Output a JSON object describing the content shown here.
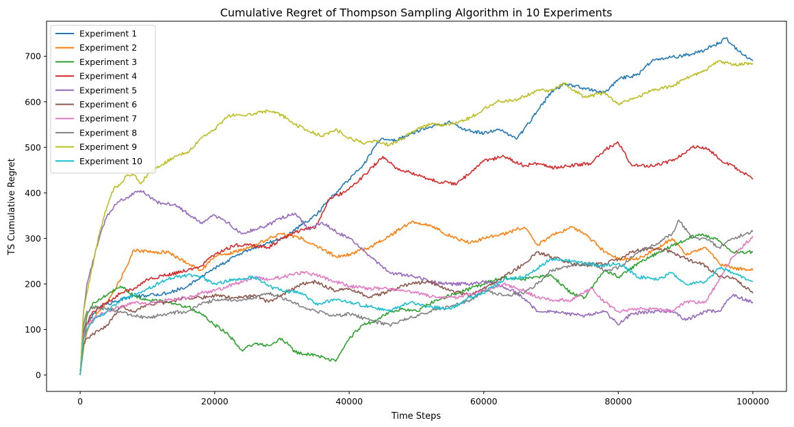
{
  "chart_data": {
    "type": "line",
    "title": "Cumulative Regret of Thompson Sampling Algorithm in 10 Experiments",
    "xlabel": "Time Steps",
    "ylabel": "TS Cumulative Regret",
    "xlim": [
      -5000,
      105000
    ],
    "ylim": [
      -36,
      777
    ],
    "x_ticks": [
      0,
      20000,
      40000,
      60000,
      80000,
      100000
    ],
    "x_tick_labels": [
      "0",
      "20000",
      "40000",
      "60000",
      "80000",
      "100000"
    ],
    "y_ticks": [
      0,
      100,
      200,
      300,
      400,
      500,
      600,
      700
    ],
    "y_tick_labels": [
      "0",
      "100",
      "200",
      "300",
      "400",
      "500",
      "600",
      "700"
    ],
    "grid": false,
    "legend_position": "upper-left",
    "series": [
      {
        "name": "Experiment 1",
        "color": "#1f77b4",
        "x": [
          0,
          500,
          1000,
          2000,
          3000,
          5000,
          7000,
          10000,
          13000,
          16000,
          18000,
          20000,
          23000,
          25000,
          28000,
          30000,
          33000,
          35000,
          37000,
          40000,
          42000,
          44000,
          45000,
          47000,
          50000,
          52000,
          55000,
          57000,
          60000,
          62000,
          65000,
          68000,
          70000,
          72000,
          75000,
          78000,
          80000,
          83000,
          85000,
          87000,
          89000,
          91000,
          93000,
          95000,
          96000,
          98000,
          100000
        ],
        "y": [
          0,
          80,
          110,
          135,
          150,
          160,
          170,
          175,
          180,
          195,
          215,
          235,
          260,
          275,
          290,
          300,
          330,
          350,
          385,
          430,
          460,
          505,
          520,
          515,
          535,
          545,
          555,
          540,
          530,
          540,
          520,
          580,
          620,
          640,
          630,
          620,
          650,
          660,
          690,
          695,
          700,
          705,
          715,
          730,
          740,
          710,
          690
        ]
      },
      {
        "name": "Experiment 2",
        "color": "#ff7f0e",
        "x": [
          0,
          500,
          1000,
          2000,
          4000,
          6000,
          8000,
          10000,
          13000,
          16000,
          18000,
          20000,
          23000,
          26000,
          28000,
          30000,
          33000,
          35000,
          38000,
          40000,
          43000,
          46000,
          49000,
          52000,
          55000,
          58000,
          60000,
          63000,
          66000,
          68000,
          70000,
          73000,
          75000,
          78000,
          80000,
          83000,
          86000,
          88000,
          90000,
          93000,
          95000,
          97000,
          100000
        ],
        "y": [
          0,
          60,
          95,
          125,
          160,
          210,
          275,
          270,
          270,
          245,
          230,
          260,
          270,
          285,
          300,
          310,
          300,
          285,
          260,
          265,
          280,
          305,
          335,
          330,
          305,
          290,
          300,
          310,
          325,
          285,
          305,
          325,
          310,
          270,
          255,
          255,
          280,
          300,
          265,
          280,
          245,
          235,
          230
        ]
      },
      {
        "name": "Experiment 3",
        "color": "#2ca02c",
        "x": [
          0,
          500,
          1000,
          2000,
          4000,
          6000,
          8000,
          10000,
          13000,
          16000,
          18000,
          20000,
          22000,
          24000,
          26000,
          28000,
          30000,
          32000,
          34000,
          36000,
          38000,
          40000,
          42000,
          44000,
          46000,
          48000,
          50000,
          53000,
          56000,
          60000,
          63000,
          66000,
          70000,
          73000,
          75000,
          78000,
          80000,
          83000,
          86000,
          89000,
          92000,
          95000,
          97000,
          100000
        ],
        "y": [
          0,
          90,
          130,
          160,
          175,
          195,
          175,
          165,
          160,
          150,
          135,
          110,
          90,
          55,
          70,
          65,
          80,
          50,
          45,
          40,
          30,
          80,
          110,
          120,
          140,
          145,
          140,
          165,
          180,
          200,
          215,
          210,
          220,
          180,
          170,
          230,
          215,
          245,
          270,
          290,
          310,
          295,
          270,
          270
        ]
      },
      {
        "name": "Experiment 4",
        "color": "#d62728",
        "x": [
          0,
          500,
          1000,
          2000,
          4000,
          6000,
          8000,
          10000,
          13000,
          16000,
          18000,
          20000,
          23000,
          25000,
          28000,
          30000,
          33000,
          35000,
          37000,
          39000,
          41000,
          43000,
          45000,
          47000,
          50000,
          53000,
          56000,
          60000,
          63000,
          66000,
          68000,
          70000,
          73000,
          76000,
          78000,
          80000,
          82000,
          85000,
          88000,
          91000,
          93000,
          95000,
          98000,
          100000
        ],
        "y": [
          0,
          90,
          115,
          140,
          160,
          180,
          190,
          210,
          220,
          230,
          240,
          265,
          285,
          285,
          280,
          300,
          320,
          325,
          385,
          400,
          420,
          450,
          480,
          455,
          440,
          425,
          420,
          470,
          480,
          460,
          465,
          455,
          460,
          465,
          495,
          510,
          460,
          460,
          470,
          500,
          500,
          475,
          450,
          430
        ]
      },
      {
        "name": "Experiment 5",
        "color": "#9467bd",
        "x": [
          0,
          500,
          1000,
          2000,
          3000,
          4000,
          5000,
          6000,
          7000,
          8000,
          9000,
          10000,
          12000,
          14000,
          16000,
          18000,
          20000,
          22000,
          24000,
          26000,
          28000,
          30000,
          32000,
          34000,
          36000,
          38000,
          40000,
          42000,
          44000,
          46000,
          48000,
          50000,
          52000,
          55000,
          58000,
          60000,
          62000,
          65000,
          68000,
          70000,
          72000,
          75000,
          78000,
          80000,
          82000,
          85000,
          88000,
          90000,
          93000,
          95000,
          97000,
          100000
        ],
        "y": [
          0,
          140,
          200,
          255,
          310,
          350,
          370,
          385,
          390,
          400,
          405,
          395,
          375,
          375,
          355,
          335,
          350,
          335,
          310,
          320,
          330,
          345,
          355,
          320,
          335,
          315,
          300,
          275,
          250,
          225,
          220,
          215,
          205,
          200,
          200,
          205,
          200,
          180,
          140,
          140,
          135,
          130,
          140,
          110,
          135,
          140,
          140,
          120,
          140,
          140,
          175,
          160
        ]
      },
      {
        "name": "Experiment 6",
        "color": "#8c564b",
        "x": [
          0,
          500,
          1000,
          2000,
          3000,
          4000,
          5000,
          6000,
          8000,
          10000,
          13000,
          16000,
          18000,
          20000,
          23000,
          26000,
          28000,
          30000,
          33000,
          35000,
          38000,
          40000,
          43000,
          46000,
          49000,
          52000,
          55000,
          58000,
          60000,
          63000,
          66000,
          68000,
          70000,
          73000,
          75000,
          78000,
          80000,
          82000,
          85000,
          88000,
          90000,
          93000,
          95000,
          97000,
          100000
        ],
        "y": [
          0,
          70,
          80,
          90,
          100,
          110,
          130,
          150,
          140,
          155,
          160,
          170,
          170,
          175,
          170,
          175,
          160,
          175,
          200,
          205,
          185,
          190,
          170,
          185,
          200,
          205,
          185,
          175,
          190,
          215,
          245,
          270,
          260,
          245,
          240,
          245,
          255,
          270,
          280,
          270,
          255,
          240,
          215,
          215,
          180
        ]
      },
      {
        "name": "Experiment 7",
        "color": "#e377c2",
        "x": [
          0,
          500,
          1000,
          2000,
          4000,
          6000,
          8000,
          10000,
          13000,
          16000,
          18000,
          20000,
          23000,
          26000,
          28000,
          30000,
          33000,
          35000,
          38000,
          40000,
          43000,
          45000,
          48000,
          50000,
          53000,
          56000,
          60000,
          63000,
          66000,
          68000,
          70000,
          73000,
          76000,
          78000,
          80000,
          83000,
          85000,
          88000,
          90000,
          93000,
          95000,
          97000,
          100000
        ],
        "y": [
          0,
          85,
          110,
          125,
          140,
          150,
          160,
          155,
          165,
          170,
          180,
          185,
          200,
          215,
          210,
          215,
          225,
          220,
          205,
          195,
          190,
          190,
          185,
          180,
          170,
          170,
          185,
          200,
          185,
          170,
          165,
          165,
          190,
          160,
          140,
          145,
          145,
          140,
          160,
          160,
          210,
          260,
          305
        ]
      },
      {
        "name": "Experiment 8",
        "color": "#7f7f7f",
        "x": [
          0,
          500,
          1000,
          2000,
          4000,
          6000,
          8000,
          10000,
          13000,
          16000,
          18000,
          20000,
          23000,
          26000,
          28000,
          30000,
          33000,
          35000,
          38000,
          40000,
          43000,
          46000,
          49000,
          52000,
          55000,
          58000,
          60000,
          63000,
          66000,
          68000,
          70000,
          73000,
          76000,
          78000,
          80000,
          83000,
          86000,
          88000,
          89000,
          91000,
          93000,
          95000,
          97000,
          100000
        ],
        "y": [
          0,
          110,
          140,
          150,
          145,
          140,
          130,
          125,
          135,
          140,
          155,
          165,
          165,
          170,
          180,
          170,
          150,
          140,
          130,
          135,
          120,
          110,
          125,
          140,
          150,
          165,
          185,
          175,
          180,
          200,
          230,
          240,
          245,
          230,
          235,
          270,
          290,
          310,
          340,
          300,
          300,
          280,
          300,
          315
        ]
      },
      {
        "name": "Experiment 9",
        "color": "#bcbd22",
        "x": [
          0,
          500,
          1000,
          2000,
          3000,
          4000,
          5000,
          6000,
          7000,
          8000,
          9000,
          10000,
          12000,
          14000,
          16000,
          18000,
          20000,
          22000,
          24000,
          26000,
          28000,
          30000,
          32000,
          34000,
          36000,
          38000,
          40000,
          42000,
          44000,
          46000,
          48000,
          50000,
          52000,
          55000,
          58000,
          60000,
          62000,
          65000,
          68000,
          70000,
          72000,
          75000,
          78000,
          80000,
          82000,
          85000,
          88000,
          90000,
          93000,
          95000,
          97000,
          100000
        ],
        "y": [
          0,
          140,
          180,
          250,
          320,
          370,
          410,
          420,
          440,
          440,
          420,
          440,
          460,
          480,
          490,
          520,
          540,
          570,
          570,
          575,
          580,
          570,
          550,
          535,
          525,
          540,
          520,
          510,
          515,
          505,
          520,
          540,
          550,
          550,
          565,
          585,
          600,
          605,
          625,
          625,
          640,
          610,
          620,
          595,
          605,
          625,
          635,
          650,
          670,
          690,
          680,
          685
        ]
      },
      {
        "name": "Experiment 10",
        "color": "#17becf",
        "x": [
          0,
          500,
          1000,
          2000,
          4000,
          6000,
          8000,
          10000,
          13000,
          16000,
          18000,
          20000,
          23000,
          26000,
          28000,
          30000,
          33000,
          35000,
          38000,
          40000,
          43000,
          46000,
          49000,
          52000,
          55000,
          58000,
          60000,
          63000,
          66000,
          68000,
          70000,
          73000,
          75000,
          78000,
          80000,
          83000,
          86000,
          88000,
          90000,
          93000,
          95000,
          97000,
          100000
        ],
        "y": [
          0,
          80,
          100,
          120,
          140,
          165,
          175,
          190,
          210,
          220,
          215,
          200,
          210,
          215,
          195,
          185,
          180,
          155,
          165,
          160,
          150,
          140,
          160,
          150,
          145,
          170,
          180,
          210,
          215,
          235,
          255,
          250,
          245,
          240,
          245,
          215,
          210,
          225,
          200,
          205,
          235,
          225,
          205
        ]
      }
    ]
  }
}
